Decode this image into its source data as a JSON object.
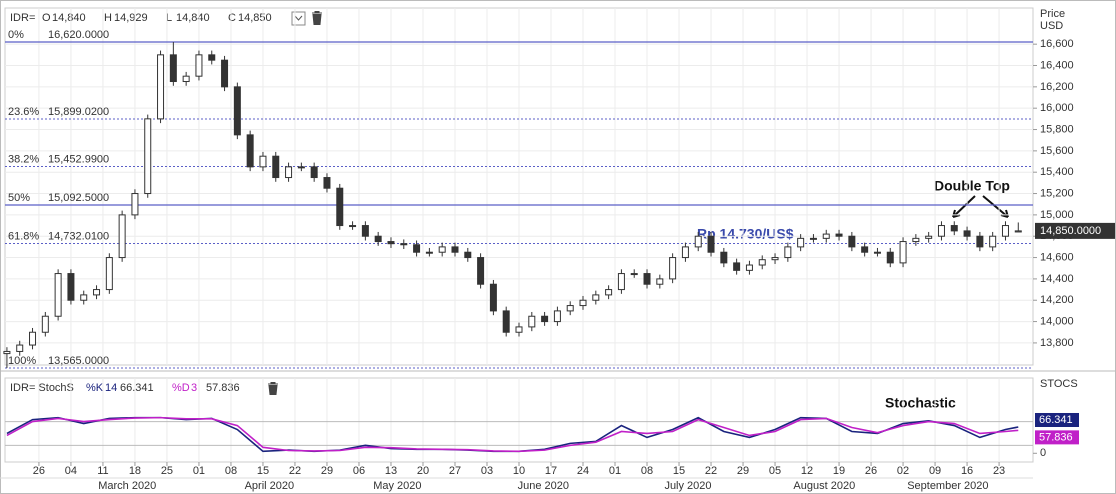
{
  "chart_data": {
    "type": "candlestick",
    "header": {
      "symbol": "IDR=",
      "ohlc": [
        {
          "key": "O",
          "value": "14,840"
        },
        {
          "key": "H",
          "value": "14,929"
        },
        {
          "key": "L",
          "value": "14,840"
        },
        {
          "key": "C",
          "value": "14,850"
        }
      ]
    },
    "y_axis_title": [
      "Price",
      "USD"
    ],
    "x": [
      0,
      2,
      4,
      6,
      8,
      10,
      12,
      14,
      16,
      18,
      20,
      22,
      24,
      26,
      28,
      30,
      32,
      34,
      36,
      38,
      40,
      42,
      44,
      46,
      48,
      50,
      52,
      54,
      56,
      58,
      60,
      62,
      64,
      66,
      68,
      70,
      72,
      74,
      76,
      78,
      80,
      82,
      84,
      86,
      88,
      90,
      92,
      94,
      96,
      98,
      100,
      102,
      104,
      106,
      108,
      110,
      112,
      114,
      116,
      118,
      120,
      122,
      124,
      126,
      128,
      130,
      132,
      134,
      136,
      138,
      140,
      142,
      144,
      146,
      148,
      150,
      152,
      154,
      156,
      158
    ],
    "open": [
      13700,
      13720,
      13780,
      13900,
      14050,
      14450,
      14200,
      14250,
      14300,
      14600,
      15000,
      15200,
      15900,
      16500,
      16250,
      16300,
      16500,
      16450,
      16200,
      15750,
      15450,
      15550,
      15350,
      15450,
      15450,
      15350,
      15250,
      14900,
      14900,
      14800,
      14750,
      14730,
      14720,
      14650,
      14650,
      14700,
      14650,
      14600,
      14350,
      14100,
      13900,
      13950,
      14050,
      14000,
      14100,
      14150,
      14200,
      14250,
      14300,
      14450,
      14450,
      14350,
      14400,
      14600,
      14700,
      14800,
      14650,
      14550,
      14480,
      14530,
      14580,
      14600,
      14700,
      14780,
      14780,
      14820,
      14800,
      14700,
      14650,
      14650,
      14550,
      14750,
      14780,
      14800,
      14900,
      14850,
      14800,
      14700,
      14800,
      14840
    ],
    "high": [
      13760,
      13820,
      13940,
      14090,
      14490,
      14490,
      14290,
      14340,
      14640,
      15040,
      15240,
      15940,
      16540,
      16620,
      16340,
      16540,
      16540,
      16490,
      16240,
      15790,
      15590,
      15590,
      15490,
      15490,
      15490,
      15390,
      15290,
      14940,
      14940,
      14840,
      14790,
      14770,
      14760,
      14690,
      14740,
      14740,
      14690,
      14640,
      14390,
      14140,
      13990,
      14090,
      14090,
      14140,
      14190,
      14240,
      14290,
      14340,
      14490,
      14490,
      14490,
      14440,
      14640,
      14740,
      14840,
      14840,
      14690,
      14590,
      14570,
      14620,
      14640,
      14740,
      14820,
      14820,
      14860,
      14860,
      14840,
      14740,
      14690,
      14690,
      14790,
      14820,
      14840,
      14940,
      14940,
      14890,
      14840,
      14840,
      14940,
      14929
    ],
    "low": [
      13565,
      13680,
      13740,
      13860,
      14010,
      14160,
      14160,
      14210,
      14260,
      14560,
      14960,
      15160,
      15860,
      16210,
      16210,
      16260,
      16410,
      16160,
      15710,
      15410,
      15410,
      15310,
      15310,
      15410,
      15310,
      15210,
      14860,
      14860,
      14760,
      14710,
      14690,
      14680,
      14610,
      14610,
      14610,
      14610,
      14560,
      14310,
      14060,
      13860,
      13860,
      13910,
      13960,
      13960,
      14060,
      14110,
      14160,
      14210,
      14260,
      14410,
      14310,
      14310,
      14360,
      14560,
      14660,
      14610,
      14510,
      14440,
      14440,
      14490,
      14540,
      14560,
      14660,
      14740,
      14740,
      14760,
      14660,
      14610,
      14610,
      14510,
      14510,
      14710,
      14740,
      14760,
      14810,
      14760,
      14660,
      14660,
      14760,
      14840
    ],
    "close": [
      13720,
      13780,
      13900,
      14050,
      14450,
      14200,
      14250,
      14300,
      14600,
      15000,
      15200,
      15900,
      16500,
      16250,
      16300,
      16500,
      16450,
      16200,
      15750,
      15450,
      15550,
      15350,
      15450,
      15450,
      15350,
      15250,
      14900,
      14900,
      14800,
      14750,
      14730,
      14720,
      14650,
      14650,
      14700,
      14650,
      14600,
      14350,
      14100,
      13900,
      13950,
      14050,
      14000,
      14100,
      14150,
      14200,
      14250,
      14300,
      14450,
      14450,
      14350,
      14400,
      14600,
      14700,
      14800,
      14650,
      14550,
      14480,
      14530,
      14580,
      14600,
      14700,
      14780,
      14780,
      14820,
      14800,
      14700,
      14650,
      14650,
      14550,
      14750,
      14780,
      14800,
      14900,
      14850,
      14800,
      14700,
      14800,
      14900,
      14850
    ],
    "up_color": "#ffffff",
    "down_color": "#333333",
    "wick_color": "#333333",
    "last_price": {
      "value": 14850,
      "label": "14,850.0000"
    },
    "xlim": [
      -0.3,
      160.3
    ],
    "xticks": [
      {
        "value": 5,
        "label": "26"
      },
      {
        "value": 10,
        "label": "04"
      },
      {
        "value": 15,
        "label": "11"
      },
      {
        "value": 20,
        "label": "18"
      },
      {
        "value": 25,
        "label": "25"
      },
      {
        "value": 30,
        "label": "01"
      },
      {
        "value": 35,
        "label": "08"
      },
      {
        "value": 40,
        "label": "15"
      },
      {
        "value": 45,
        "label": "22"
      },
      {
        "value": 50,
        "label": "29"
      },
      {
        "value": 55,
        "label": "06"
      },
      {
        "value": 60,
        "label": "13"
      },
      {
        "value": 65,
        "label": "20"
      },
      {
        "value": 70,
        "label": "27"
      },
      {
        "value": 75,
        "label": "03"
      },
      {
        "value": 80,
        "label": "10"
      },
      {
        "value": 85,
        "label": "17"
      },
      {
        "value": 90,
        "label": "24"
      },
      {
        "value": 95,
        "label": "01"
      },
      {
        "value": 100,
        "label": "08"
      },
      {
        "value": 105,
        "label": "15"
      },
      {
        "value": 110,
        "label": "22"
      },
      {
        "value": 115,
        "label": "29"
      },
      {
        "value": 120,
        "label": "05"
      },
      {
        "value": 125,
        "label": "12"
      },
      {
        "value": 130,
        "label": "19"
      },
      {
        "value": 135,
        "label": "26"
      },
      {
        "value": 140,
        "label": "02"
      },
      {
        "value": 145,
        "label": "09"
      },
      {
        "value": 150,
        "label": "16"
      },
      {
        "value": 155,
        "label": "23"
      }
    ],
    "month_labels": [
      {
        "value": 18.8,
        "label": "March 2020"
      },
      {
        "value": 41,
        "label": "April 2020"
      },
      {
        "value": 61,
        "label": "May 2020"
      },
      {
        "value": 83.8,
        "label": "June 2020"
      },
      {
        "value": 106.4,
        "label": "July 2020"
      },
      {
        "value": 127.7,
        "label": "August 2020"
      },
      {
        "value": 147,
        "label": "September 2020"
      }
    ],
    "ylim": [
      13593,
      16939
    ],
    "yticks": [
      {
        "value": 13800,
        "label": "13,800"
      },
      {
        "value": 14000,
        "label": "14,000"
      },
      {
        "value": 14200,
        "label": "14,200"
      },
      {
        "value": 14400,
        "label": "14,400"
      },
      {
        "value": 14600,
        "label": "14,600"
      },
      {
        "value": 14800,
        "label": "14,800"
      },
      {
        "value": 15000,
        "label": "15,000"
      },
      {
        "value": 15200,
        "label": "15,200"
      },
      {
        "value": 15400,
        "label": "15,400"
      },
      {
        "value": 15600,
        "label": "15,600"
      },
      {
        "value": 15800,
        "label": "15,800"
      },
      {
        "value": 16000,
        "label": "16,000"
      },
      {
        "value": 16200,
        "label": "16,200"
      },
      {
        "value": 16400,
        "label": "16,400"
      },
      {
        "value": 16600,
        "label": "16,600"
      }
    ],
    "grid": true,
    "fib_levels": [
      {
        "pct": "0%",
        "value": 16620,
        "value_label": "16,620.0000",
        "style": "solid"
      },
      {
        "pct": "23.6%",
        "value": 15899.02,
        "value_label": "15,899.0200",
        "style": "dotted"
      },
      {
        "pct": "38.2%",
        "value": 15452.99,
        "value_label": "15,452.9900",
        "style": "dotted"
      },
      {
        "pct": "50%",
        "value": 15092.5,
        "value_label": "15,092.5000",
        "style": "solid"
      },
      {
        "pct": "61.8%",
        "value": 14732.01,
        "value_label": "14,732.0100",
        "style": "dotted"
      },
      {
        "pct": "100%",
        "value": 13565,
        "value_label": "13,565.0000",
        "style": "dotted"
      }
    ],
    "fib_color": "#5b5fc7",
    "annotations": {
      "price_note": "Rp 14.730/US$",
      "pattern": "Double Top",
      "indicator": "Stochastic"
    },
    "stoch": {
      "label": "IDR= StochS",
      "params": [
        {
          "key": "%K",
          "period": 14,
          "series": 0
        },
        {
          "key": "%D",
          "period": 3,
          "series": 1
        }
      ],
      "axis_title": "STOCS",
      "x": [
        0,
        4,
        8,
        12,
        16,
        20,
        24,
        28,
        32,
        36,
        40,
        44,
        48,
        52,
        56,
        60,
        64,
        68,
        72,
        76,
        80,
        84,
        88,
        92,
        96,
        100,
        104,
        108,
        112,
        116,
        120,
        124,
        128,
        132,
        136,
        140,
        144,
        148,
        152,
        156,
        158
      ],
      "series": [
        {
          "name": "%K",
          "color": "#1a237e",
          "values": [
            50,
            85,
            90,
            75,
            88,
            90,
            90,
            85,
            88,
            60,
            5,
            8,
            5,
            8,
            20,
            12,
            10,
            10,
            8,
            5,
            5,
            10,
            25,
            30,
            70,
            40,
            60,
            90,
            55,
            40,
            60,
            90,
            88,
            55,
            50,
            75,
            82,
            70,
            40,
            60,
            66.341
          ]
        },
        {
          "name": "%D",
          "color": "#c020c8",
          "values": [
            45,
            80,
            88,
            80,
            85,
            89,
            90,
            87,
            87,
            70,
            15,
            7,
            6,
            7,
            15,
            14,
            11,
            10,
            9,
            6,
            5,
            8,
            20,
            28,
            55,
            50,
            55,
            85,
            65,
            45,
            55,
            85,
            88,
            65,
            52,
            70,
            80,
            75,
            50,
            55,
            57.836
          ]
        }
      ],
      "ylim": [
        -22,
        190
      ],
      "yticks": [
        0
      ],
      "levels": [
        20,
        80
      ]
    }
  }
}
